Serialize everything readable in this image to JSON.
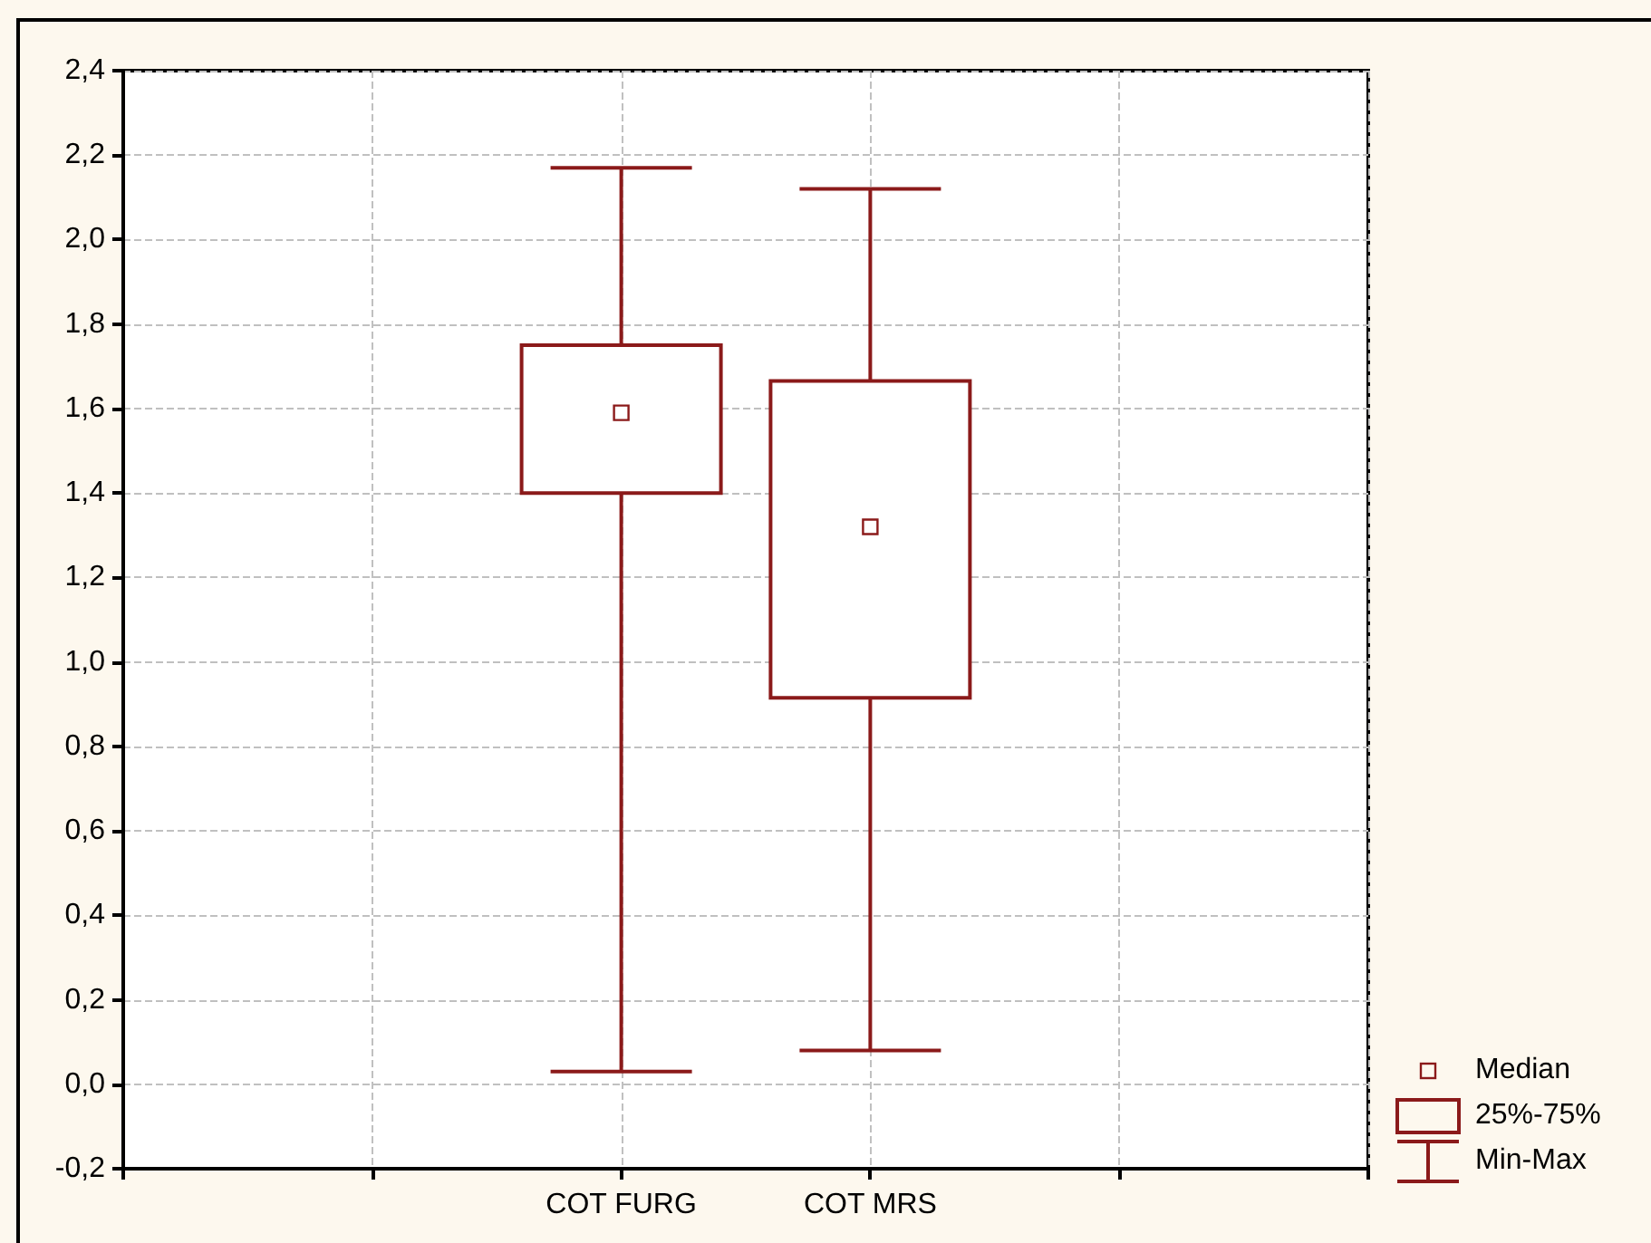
{
  "chart_data": {
    "type": "box",
    "categories": [
      null,
      null,
      "COT FURG",
      "COT MRS",
      null,
      null
    ],
    "ylim": [
      -0.2,
      2.4
    ],
    "yticks": [
      {
        "value": -0.2,
        "label": "-0,2"
      },
      {
        "value": 0,
        "label": "0,0"
      },
      {
        "value": 0.2,
        "label": "0,2"
      },
      {
        "value": 0.4,
        "label": "0,4"
      },
      {
        "value": 0.6,
        "label": "0,6"
      },
      {
        "value": 0.8,
        "label": "0,8"
      },
      {
        "value": 1,
        "label": "1,0"
      },
      {
        "value": 1.2,
        "label": "1,2"
      },
      {
        "value": 1.4,
        "label": "1,4"
      },
      {
        "value": 1.6,
        "label": "1,6"
      },
      {
        "value": 1.8,
        "label": "1,8"
      },
      {
        "value": 2,
        "label": "2,0"
      },
      {
        "value": 2.2,
        "label": "2,2"
      },
      {
        "value": 2.4,
        "label": "2,4"
      }
    ],
    "grid": true,
    "legend": "bottom right",
    "marker": "square",
    "series": [
      {
        "name": "25%-75%",
        "color": "#8b1a1a",
        "boxes": [
          null,
          null,
          {
            "low": 0.03,
            "q1": 1.4,
            "median": 1.59,
            "q3": 1.75,
            "high": 2.17
          },
          {
            "low": 0.08,
            "q1": 0.915,
            "median": 1.32,
            "q3": 1.665,
            "high": 2.12
          },
          null,
          null
        ]
      }
    ],
    "annotations": [
      "Median",
      "Min-Max"
    ]
  }
}
